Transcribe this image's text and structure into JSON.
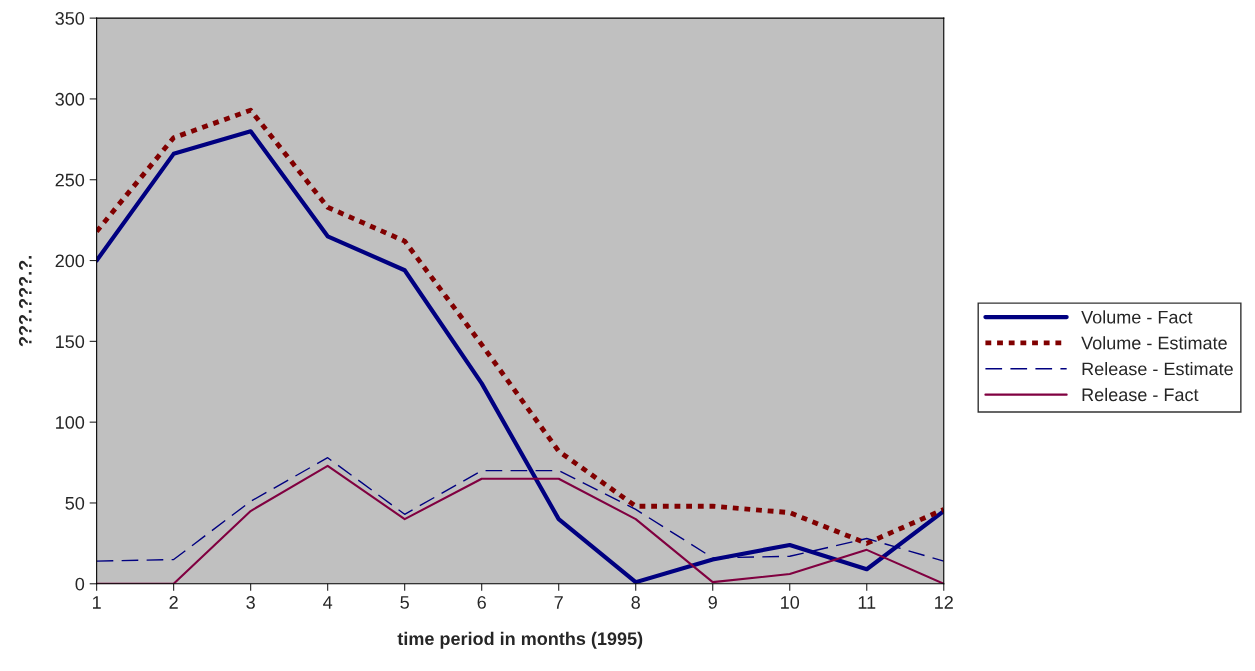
{
  "chart_data": {
    "type": "line",
    "xlabel": "time period in months (1995)",
    "ylabel": "???.???.?.",
    "x": [
      1,
      2,
      3,
      4,
      5,
      6,
      7,
      8,
      9,
      10,
      11,
      12
    ],
    "xlim": [
      1,
      12
    ],
    "xticks": [
      1,
      2,
      3,
      4,
      5,
      6,
      7,
      8,
      9,
      10,
      11,
      12
    ],
    "ylim": [
      0,
      350
    ],
    "yticks": [
      0,
      50,
      100,
      150,
      200,
      250,
      300,
      350
    ],
    "grid": false,
    "legend": "right",
    "marker": "none",
    "series": [
      {
        "name": "Volume - Fact",
        "color": "#000080",
        "line_style": "solid",
        "values": [
          200,
          266,
          280,
          215,
          194,
          124,
          40,
          1,
          15,
          24,
          9,
          45
        ]
      },
      {
        "name": "Volume - Estimate",
        "color": "#800000",
        "line_style": "dotted",
        "values": [
          218,
          276,
          293,
          233,
          212,
          148,
          82,
          48,
          48,
          44,
          25,
          46
        ]
      },
      {
        "name": "Release - Estimate",
        "color": "#000080",
        "line_style": "dashed",
        "values": [
          14,
          15,
          51,
          78,
          43,
          70,
          70,
          46,
          16,
          17,
          28,
          14
        ]
      },
      {
        "name": "Release - Fact",
        "color": "#800040",
        "line_style": "solid",
        "values": [
          0,
          0,
          45,
          73,
          40,
          65,
          65,
          40,
          1,
          6,
          21,
          0
        ]
      }
    ]
  }
}
